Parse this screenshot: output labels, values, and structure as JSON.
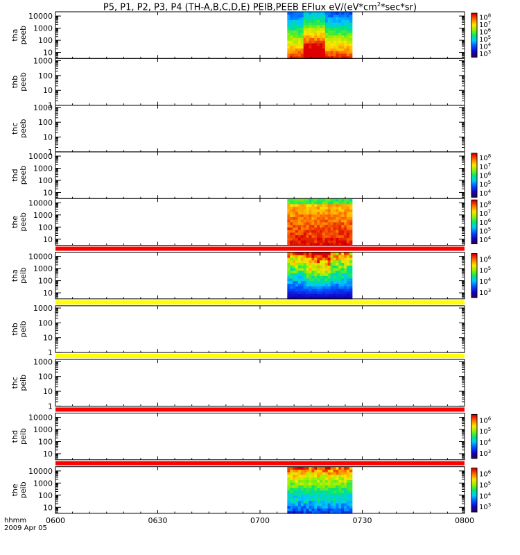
{
  "title": {
    "prefix": "P5, P1, P2, P3, P4 (TH-A,B,C,D,E) PEIB,PEEB EFlux eV/(eV*cm",
    "sup": "2",
    "suffix": "*sec*sr)"
  },
  "footer": {
    "time_label": "hhmm",
    "date": "2009 Apr 05"
  },
  "chart_data": {
    "type": "heatmap",
    "x_axis": {
      "ticks": [
        "0600",
        "0630",
        "0700",
        "0730",
        "0800"
      ],
      "range": [
        "06:00",
        "08:00"
      ]
    },
    "panels": [
      {
        "name_line1": "tha",
        "name_line2": "peeb",
        "y_ticks": [
          "10",
          "100",
          "1000",
          "10000"
        ],
        "log": true,
        "has_data": true,
        "data_time": [
          "07:08",
          "07:27"
        ],
        "style": "electron",
        "colorbar": [
          "10^3",
          "10^4",
          "10^5",
          "10^6",
          "10^7",
          "10^8"
        ],
        "flag_after": null
      },
      {
        "name_line1": "thb",
        "name_line2": "peeb",
        "y_ticks": [
          "1",
          "10",
          "100",
          "1000"
        ],
        "log": true,
        "has_data": false,
        "colorbar": null,
        "flag_after": null
      },
      {
        "name_line1": "thc",
        "name_line2": "peeb",
        "y_ticks": [
          "1",
          "10",
          "100",
          "1000"
        ],
        "log": true,
        "has_data": false,
        "colorbar": null,
        "flag_after": null
      },
      {
        "name_line1": "thd",
        "name_line2": "peeb",
        "y_ticks": [
          "10",
          "100",
          "1000",
          "10000"
        ],
        "log": true,
        "has_data": false,
        "colorbar": [
          "10^4",
          "10^5",
          "10^6",
          "10^7",
          "10^8"
        ],
        "flag_after": null
      },
      {
        "name_line1": "the",
        "name_line2": "peeb",
        "y_ticks": [
          "10",
          "100",
          "1000",
          "10000"
        ],
        "log": true,
        "has_data": true,
        "data_time": [
          "07:08",
          "07:27"
        ],
        "style": "electron_hot",
        "colorbar": [
          "10^4",
          "10^5",
          "10^6",
          "10^7",
          "10^8"
        ],
        "flag_after": "red"
      },
      {
        "name_line1": "tha",
        "name_line2": "peib",
        "y_ticks": [
          "10",
          "100",
          "1000",
          "10000"
        ],
        "log": true,
        "has_data": true,
        "data_time": [
          "07:08",
          "07:27"
        ],
        "style": "ion",
        "colorbar": [
          "10^3",
          "10^4",
          "10^5",
          "10^6"
        ],
        "flag_after": "yellow"
      },
      {
        "name_line1": "thb",
        "name_line2": "peib",
        "y_ticks": [
          "1",
          "10",
          "100",
          "1000"
        ],
        "log": true,
        "has_data": false,
        "colorbar": null,
        "flag_after": "yellow"
      },
      {
        "name_line1": "thc",
        "name_line2": "peib",
        "y_ticks": [
          "1",
          "10",
          "100",
          "1000"
        ],
        "log": true,
        "has_data": false,
        "colorbar": null,
        "flag_after": "red"
      },
      {
        "name_line1": "thd",
        "name_line2": "peib",
        "y_ticks": [
          "10",
          "100",
          "1000",
          "10000"
        ],
        "log": true,
        "has_data": false,
        "colorbar": [
          "10^3",
          "10^4",
          "10^5",
          "10^6"
        ],
        "flag_after": "red"
      },
      {
        "name_line1": "the",
        "name_line2": "peib",
        "y_ticks": [
          "10",
          "100",
          "1000",
          "10000"
        ],
        "log": true,
        "has_data": true,
        "data_time": [
          "07:08",
          "07:27"
        ],
        "style": "ion_hot",
        "colorbar": [
          "10^3",
          "10^4",
          "10^5",
          "10^6"
        ],
        "flag_after": null
      }
    ],
    "colors": {
      "flag_red": "#ff0000",
      "flag_yellow": "#ffff00"
    }
  }
}
